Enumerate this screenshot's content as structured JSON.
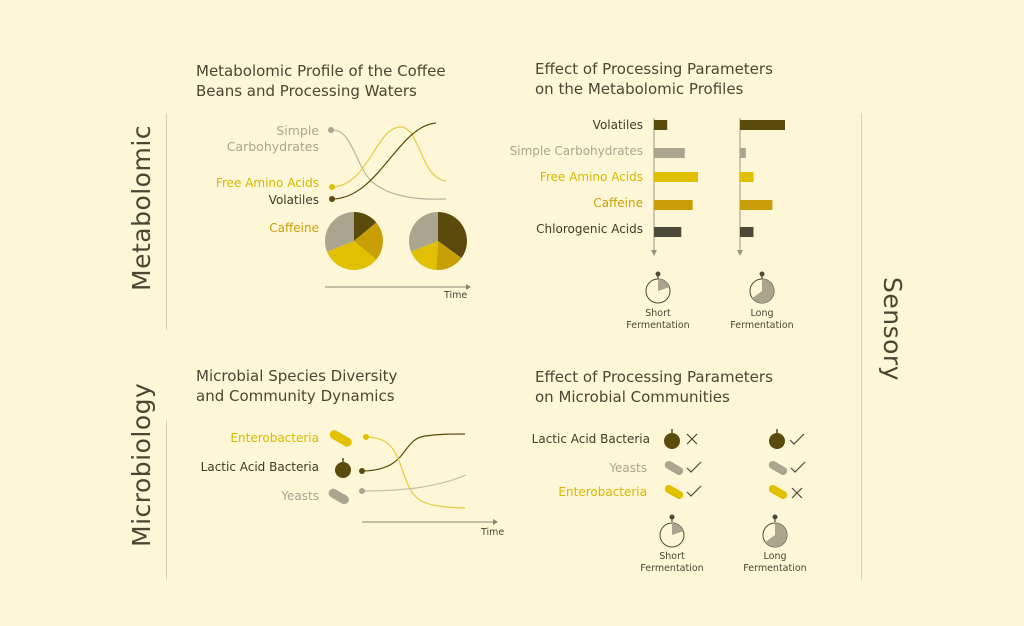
{
  "colors": {
    "background": "#fdf7d8",
    "dark": "#5a4a0c",
    "gray": "#aaa58f",
    "yellow": "#e0c000",
    "gold": "#c99f08",
    "charcoal": "#4e4a3a",
    "text": "#4a4632"
  },
  "side_labels": {
    "metabolomic": "Metabolomic",
    "microbiology": "Microbiology",
    "sensory": "Sensory"
  },
  "panel_metabolomic_profile": {
    "title_line1": "Metabolomic Profile of the Coffee",
    "title_line2": "Beans and Processing Waters",
    "label_simple_1": "Simple",
    "label_simple_2": "Carbohydrates",
    "label_amino": "Free Amino Acids",
    "label_volatiles": "Volatiles",
    "label_caffeine": "Caffeine",
    "axis_time": "Time",
    "pie1": [
      {
        "key": "volatiles",
        "value": 0.14,
        "color": "dark"
      },
      {
        "key": "caffeine",
        "value": 0.22,
        "color": "gold"
      },
      {
        "key": "amino",
        "value": 0.33,
        "color": "yellow"
      },
      {
        "key": "simple",
        "value": 0.31,
        "color": "gray"
      }
    ],
    "pie2": [
      {
        "key": "volatiles",
        "value": 0.35,
        "color": "dark"
      },
      {
        "key": "caffeine",
        "value": 0.16,
        "color": "gold"
      },
      {
        "key": "amino",
        "value": 0.18,
        "color": "yellow"
      },
      {
        "key": "simple",
        "value": 0.31,
        "color": "gray"
      }
    ]
  },
  "panel_processing_metabolomic": {
    "title_line1": "Effect of Processing Parameters",
    "title_line2": "on the Metabolomic Profiles",
    "categories": [
      "Volatiles",
      "Simple Carbohydrates",
      "Free Amino Acids",
      "Caffeine",
      "Chlorogenic Acids"
    ],
    "category_colors": [
      "dark",
      "gray",
      "yellow",
      "gold",
      "charcoal"
    ],
    "short_values": [
      0.3,
      0.7,
      1.0,
      0.88,
      0.62
    ],
    "long_values": [
      1.0,
      0.13,
      0.3,
      0.72,
      0.3
    ],
    "short_label_1": "Short",
    "short_label_2": "Fermentation",
    "long_label_1": "Long",
    "long_label_2": "Fermentation"
  },
  "panel_microbial_diversity": {
    "title_line1": "Microbial Species Diversity",
    "title_line2": "and Community Dynamics",
    "label_entero": "Enterobacteria",
    "label_lab": "Lactic Acid Bacteria",
    "label_yeasts": "Yeasts",
    "axis_time": "Time"
  },
  "panel_processing_microbial": {
    "title_line1": "Effect of Processing Parameters",
    "title_line2": "on Microbial Communities",
    "rows": [
      {
        "label": "Lactic Acid Bacteria",
        "color": "dark",
        "short": "cross",
        "long": "check"
      },
      {
        "label": "Yeasts",
        "color": "gray",
        "short": "check",
        "long": "check"
      },
      {
        "label": "Enterobacteria",
        "color": "yellow",
        "short": "check",
        "long": "cross"
      }
    ],
    "short_label_1": "Short",
    "short_label_2": "Fermentation",
    "long_label_1": "Long",
    "long_label_2": "Fermentation"
  }
}
